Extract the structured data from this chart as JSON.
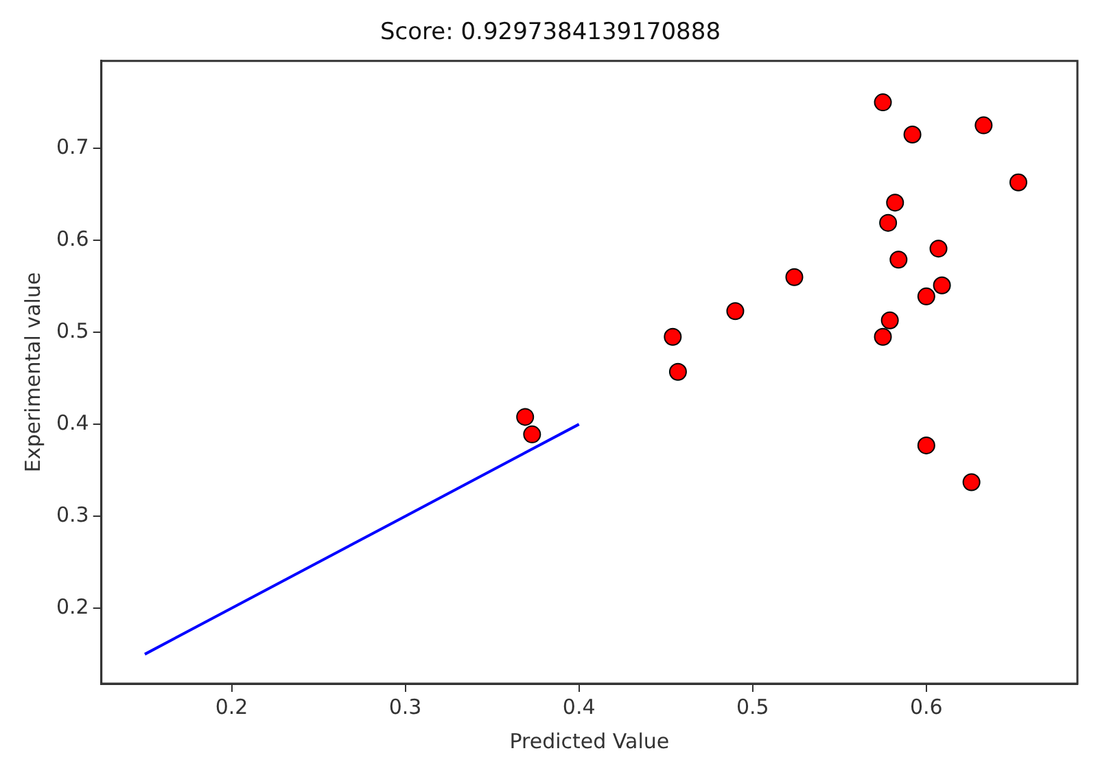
{
  "chart_data": {
    "type": "scatter",
    "title": "Score: 0.9297384139170888",
    "xlabel": "Predicted Value",
    "ylabel": "Experimental value",
    "xlim": [
      0.125,
      0.687
    ],
    "ylim": [
      0.118,
      0.795
    ],
    "xticks": [
      0.2,
      0.3,
      0.4,
      0.5,
      0.6
    ],
    "yticks": [
      0.2,
      0.3,
      0.4,
      0.5,
      0.6,
      0.7
    ],
    "grid": false,
    "legend": false,
    "series": [
      {
        "type": "scatter",
        "color": "#ff0000",
        "marker": "circle",
        "x": [
          0.575,
          0.592,
          0.633,
          0.653,
          0.582,
          0.578,
          0.607,
          0.584,
          0.524,
          0.609,
          0.6,
          0.49,
          0.579,
          0.454,
          0.575,
          0.457,
          0.369,
          0.373,
          0.6,
          0.626
        ],
        "values": [
          0.75,
          0.715,
          0.725,
          0.663,
          0.641,
          0.619,
          0.591,
          0.579,
          0.56,
          0.551,
          0.539,
          0.523,
          0.513,
          0.495,
          0.495,
          0.457,
          0.408,
          0.389,
          0.377,
          0.337
        ]
      },
      {
        "type": "line",
        "color": "#0000ff",
        "marker": "none",
        "line_style": "solid",
        "x": [
          0.15,
          0.4
        ],
        "values": [
          0.15,
          0.4
        ]
      }
    ]
  }
}
